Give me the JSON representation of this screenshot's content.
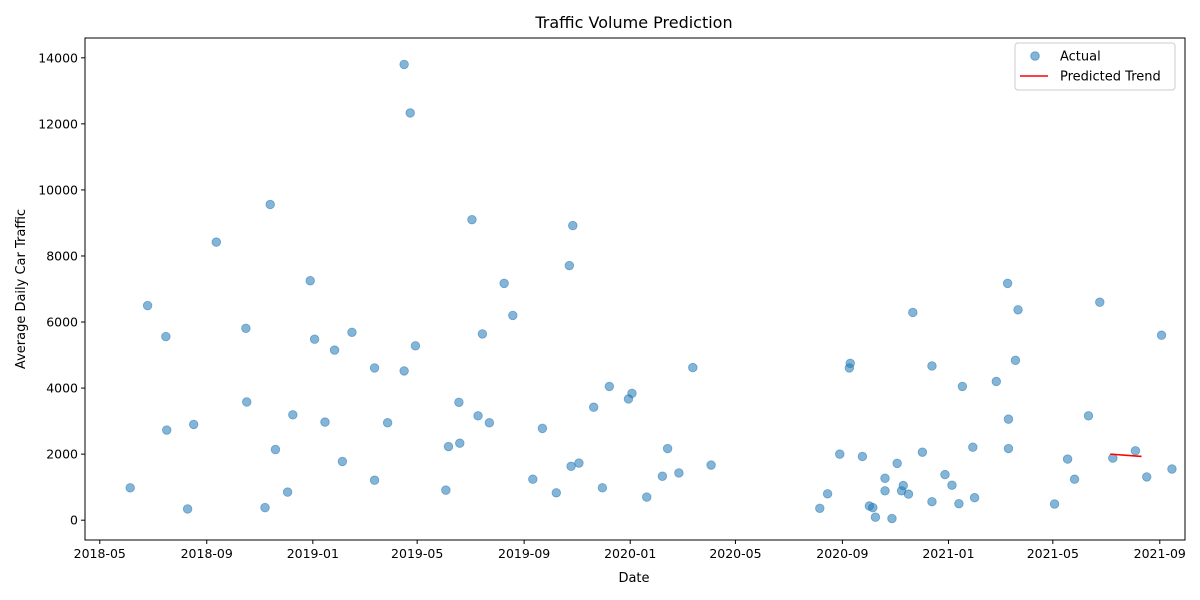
{
  "chart_data": {
    "type": "scatter",
    "title": "Traffic Volume Prediction",
    "xlabel": "Date",
    "ylabel": "Average Daily Car Traffic",
    "ylim": [
      -600,
      14600
    ],
    "xlim": [
      "2018-04-14",
      "2021-09-30"
    ],
    "grid": false,
    "legend_position": "top-right",
    "x_ticks": [
      "2018-05",
      "2018-09",
      "2019-01",
      "2019-05",
      "2019-09",
      "2020-01",
      "2020-05",
      "2020-09",
      "2021-01",
      "2021-05",
      "2021-09"
    ],
    "y_ticks": [
      0,
      2000,
      4000,
      6000,
      8000,
      10000,
      12000,
      14000
    ],
    "series": [
      {
        "name": "Actual",
        "kind": "scatter",
        "color": "#1f77b4",
        "points": [
          [
            "2018-06-05",
            980
          ],
          [
            "2018-06-25",
            6500
          ],
          [
            "2018-07-16",
            5560
          ],
          [
            "2018-07-17",
            2730
          ],
          [
            "2018-08-10",
            340
          ],
          [
            "2018-08-17",
            2900
          ],
          [
            "2018-09-12",
            8420
          ],
          [
            "2018-10-16",
            5810
          ],
          [
            "2018-10-17",
            3580
          ],
          [
            "2018-11-07",
            380
          ],
          [
            "2018-11-13",
            9560
          ],
          [
            "2018-11-19",
            2140
          ],
          [
            "2018-12-03",
            850
          ],
          [
            "2018-12-09",
            3190
          ],
          [
            "2018-12-29",
            7250
          ],
          [
            "2019-01-03",
            5480
          ],
          [
            "2019-01-15",
            2970
          ],
          [
            "2019-01-26",
            5150
          ],
          [
            "2019-02-04",
            1780
          ],
          [
            "2019-02-15",
            5690
          ],
          [
            "2019-03-13",
            1210
          ],
          [
            "2019-03-13",
            4610
          ],
          [
            "2019-03-28",
            2950
          ],
          [
            "2019-04-16",
            13800
          ],
          [
            "2019-04-16",
            4520
          ],
          [
            "2019-04-23",
            12330
          ],
          [
            "2019-04-29",
            5280
          ],
          [
            "2019-06-03",
            910
          ],
          [
            "2019-06-06",
            2230
          ],
          [
            "2019-06-18",
            3570
          ],
          [
            "2019-06-19",
            2330
          ],
          [
            "2019-07-03",
            9100
          ],
          [
            "2019-07-10",
            3160
          ],
          [
            "2019-07-15",
            5640
          ],
          [
            "2019-07-23",
            2950
          ],
          [
            "2019-08-09",
            7170
          ],
          [
            "2019-08-19",
            6200
          ],
          [
            "2019-09-11",
            1240
          ],
          [
            "2019-09-22",
            2780
          ],
          [
            "2019-10-08",
            830
          ],
          [
            "2019-10-23",
            7710
          ],
          [
            "2019-10-25",
            1630
          ],
          [
            "2019-10-27",
            8920
          ],
          [
            "2019-11-03",
            1730
          ],
          [
            "2019-11-20",
            3420
          ],
          [
            "2019-11-30",
            980
          ],
          [
            "2019-12-08",
            4050
          ],
          [
            "2019-12-30",
            3670
          ],
          [
            "2020-01-03",
            3840
          ],
          [
            "2020-01-20",
            700
          ],
          [
            "2020-02-07",
            1330
          ],
          [
            "2020-02-13",
            2170
          ],
          [
            "2020-02-26",
            1430
          ],
          [
            "2020-03-13",
            4620
          ],
          [
            "2020-04-03",
            1670
          ],
          [
            "2020-08-06",
            360
          ],
          [
            "2020-08-15",
            800
          ],
          [
            "2020-08-29",
            2000
          ],
          [
            "2020-09-09",
            4610
          ],
          [
            "2020-09-10",
            4750
          ],
          [
            "2020-09-24",
            1930
          ],
          [
            "2020-10-02",
            430
          ],
          [
            "2020-10-06",
            380
          ],
          [
            "2020-10-09",
            90
          ],
          [
            "2020-10-20",
            1270
          ],
          [
            "2020-10-20",
            890
          ],
          [
            "2020-10-28",
            50
          ],
          [
            "2020-11-03",
            1720
          ],
          [
            "2020-11-08",
            890
          ],
          [
            "2020-11-10",
            1050
          ],
          [
            "2020-11-16",
            790
          ],
          [
            "2020-11-21",
            6290
          ],
          [
            "2020-12-02",
            2060
          ],
          [
            "2020-12-13",
            4670
          ],
          [
            "2020-12-13",
            560
          ],
          [
            "2020-12-28",
            1380
          ],
          [
            "2021-01-05",
            1060
          ],
          [
            "2021-01-13",
            500
          ],
          [
            "2021-01-17",
            4050
          ],
          [
            "2021-01-29",
            2210
          ],
          [
            "2021-01-31",
            680
          ],
          [
            "2021-02-25",
            4200
          ],
          [
            "2021-03-10",
            7170
          ],
          [
            "2021-03-11",
            2170
          ],
          [
            "2021-03-11",
            3060
          ],
          [
            "2021-03-19",
            4840
          ],
          [
            "2021-03-22",
            6370
          ],
          [
            "2021-05-03",
            490
          ],
          [
            "2021-05-18",
            1850
          ],
          [
            "2021-05-26",
            1240
          ],
          [
            "2021-06-11",
            3160
          ],
          [
            "2021-06-24",
            6600
          ],
          [
            "2021-07-09",
            1880
          ],
          [
            "2021-08-04",
            2100
          ],
          [
            "2021-08-17",
            1310
          ],
          [
            "2021-09-03",
            5600
          ],
          [
            "2021-09-15",
            1550
          ]
        ]
      },
      {
        "name": "Predicted Trend",
        "kind": "line",
        "color": "#ff0000",
        "points": [
          [
            "2021-07-06",
            2000
          ],
          [
            "2021-08-11",
            1930
          ]
        ]
      }
    ]
  }
}
